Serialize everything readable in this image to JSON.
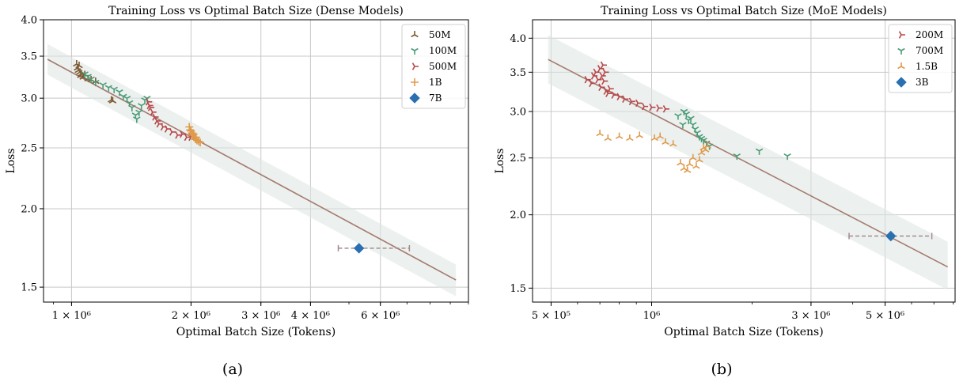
{
  "panels": [
    {
      "caption": "(a)",
      "chart_data": {
        "type": "scatter",
        "title": "Training Loss vs Optimal Batch Size (Dense Models)",
        "xlabel": "Optimal Batch Size (Tokens)",
        "ylabel": "Loss",
        "xscale": "log",
        "yscale": "log",
        "xlim": [
          850000,
          10000000
        ],
        "ylim": [
          1.42,
          4.0
        ],
        "xticks": [
          {
            "v": 1000000,
            "label": "1 × 10⁶"
          },
          {
            "v": 2000000,
            "label": "2 × 10⁶"
          },
          {
            "v": 3000000,
            "label": "3 × 10⁶"
          },
          {
            "v": 4000000,
            "label": "4 × 10⁶"
          },
          {
            "v": 6000000,
            "label": "6 × 10⁶"
          }
        ],
        "yticks": [
          {
            "v": 1.5,
            "label": "1.5"
          },
          {
            "v": 2.0,
            "label": "2.0"
          },
          {
            "v": 2.5,
            "label": "2.5"
          },
          {
            "v": 3.0,
            "label": "3.0"
          },
          {
            "v": 3.5,
            "label": "3.5"
          },
          {
            "v": 4.0,
            "label": "4.0"
          }
        ],
        "grid": true,
        "legend_position": "top-right",
        "fit_line": {
          "x": [
            870000,
            9300000
          ],
          "y": [
            3.46,
            1.54
          ],
          "color": "#a57a6e"
        },
        "fit_band": {
          "upper": [
            [
              870000,
              3.66
            ],
            [
              9300000,
              1.63
            ]
          ],
          "lower": [
            [
              870000,
              3.27
            ],
            [
              9300000,
              1.45
            ]
          ],
          "color": "#dde6e1"
        },
        "series": [
          {
            "name": "50M",
            "color": "#7d5a32",
            "marker": "tri_down",
            "points": [
              [
                1030000,
                3.4
              ],
              [
                1035000,
                3.35
              ],
              [
                1040000,
                3.32
              ],
              [
                1045000,
                3.38
              ],
              [
                1050000,
                3.3
              ],
              [
                1055000,
                3.26
              ],
              [
                1060000,
                3.28
              ],
              [
                1070000,
                3.24
              ],
              [
                1080000,
                3.27
              ],
              [
                1100000,
                3.22
              ],
              [
                1120000,
                3.21
              ],
              [
                1150000,
                3.19
              ],
              [
                1260000,
                2.98
              ],
              [
                1270000,
                2.97
              ]
            ]
          },
          {
            "name": "100M",
            "color": "#4a9c78",
            "marker": "tri_up",
            "points": [
              [
                1080000,
                3.28
              ],
              [
                1100000,
                3.25
              ],
              [
                1120000,
                3.22
              ],
              [
                1150000,
                3.18
              ],
              [
                1200000,
                3.15
              ],
              [
                1240000,
                3.12
              ],
              [
                1280000,
                3.1
              ],
              [
                1320000,
                3.07
              ],
              [
                1350000,
                3.02
              ],
              [
                1380000,
                3.0
              ],
              [
                1400000,
                2.95
              ],
              [
                1420000,
                2.9
              ],
              [
                1450000,
                2.82
              ],
              [
                1460000,
                2.78
              ],
              [
                1480000,
                2.85
              ],
              [
                1500000,
                2.92
              ],
              [
                1530000,
                2.98
              ],
              [
                1550000,
                3.0
              ]
            ]
          },
          {
            "name": "500M",
            "color": "#b8474a",
            "marker": "tri_left",
            "points": [
              [
                1560000,
                2.96
              ],
              [
                1570000,
                2.92
              ],
              [
                1580000,
                2.9
              ],
              [
                1600000,
                2.85
              ],
              [
                1620000,
                2.8
              ],
              [
                1640000,
                2.76
              ],
              [
                1660000,
                2.73
              ],
              [
                1700000,
                2.7
              ],
              [
                1740000,
                2.68
              ],
              [
                1790000,
                2.65
              ],
              [
                1850000,
                2.62
              ],
              [
                1900000,
                2.63
              ],
              [
                1950000,
                2.6
              ],
              [
                2000000,
                2.6
              ]
            ]
          },
          {
            "name": "1B",
            "color": "#e09a4c",
            "marker": "plus",
            "points": [
              [
                1980000,
                2.7
              ],
              [
                1990000,
                2.67
              ],
              [
                2000000,
                2.66
              ],
              [
                2010000,
                2.64
              ],
              [
                2020000,
                2.62
              ],
              [
                2030000,
                2.63
              ],
              [
                2040000,
                2.6
              ],
              [
                2050000,
                2.58
              ],
              [
                2060000,
                2.6
              ],
              [
                2070000,
                2.57
              ],
              [
                2090000,
                2.56
              ],
              [
                2110000,
                2.55
              ]
            ]
          },
          {
            "name": "7B",
            "color": "#2a6fb0",
            "marker": "diamond",
            "points": [
              [
                5300000,
                1.73
              ]
            ],
            "xerr": [
              [
                4700000,
                7100000
              ]
            ]
          }
        ]
      }
    },
    {
      "caption": "(b)",
      "chart_data": {
        "type": "scatter",
        "title": "Training Loss vs Optimal Batch Size (MoE Models)",
        "xlabel": "Optimal Batch Size (Tokens)",
        "ylabel": "Loss",
        "xscale": "log",
        "yscale": "log",
        "xlim": [
          440000,
          8100000
        ],
        "ylim": [
          1.42,
          4.3
        ],
        "xticks": [
          {
            "v": 500000,
            "label": "5 × 10⁵"
          },
          {
            "v": 1000000,
            "label": "10⁶"
          },
          {
            "v": 3000000,
            "label": "3 × 10⁶"
          },
          {
            "v": 5000000,
            "label": "5 × 10⁶"
          }
        ],
        "yticks": [
          {
            "v": 1.5,
            "label": "1.5"
          },
          {
            "v": 2.0,
            "label": "2.0"
          },
          {
            "v": 2.5,
            "label": "2.5"
          },
          {
            "v": 3.0,
            "label": "3.0"
          },
          {
            "v": 3.5,
            "label": "3.5"
          },
          {
            "v": 4.0,
            "label": "4.0"
          }
        ],
        "grid": true,
        "legend_position": "top-right",
        "fit_line": {
          "x": [
            490000,
            7700000
          ],
          "y": [
            3.68,
            1.63
          ],
          "color": "#a57a6e"
        },
        "fit_band": {
          "upper": [
            [
              490000,
              4.05
            ],
            [
              7700000,
              1.8
            ]
          ],
          "lower": [
            [
              490000,
              3.35
            ],
            [
              7700000,
              1.49
            ]
          ],
          "color": "#dde6e1"
        },
        "series": [
          {
            "name": "200M",
            "color": "#b8474a",
            "marker": "tri_left",
            "points": [
              [
                640000,
                3.4
              ],
              [
                660000,
                3.35
              ],
              [
                670000,
                3.45
              ],
              [
                680000,
                3.5
              ],
              [
                690000,
                3.4
              ],
              [
                700000,
                3.55
              ],
              [
                705000,
                3.3
              ],
              [
                710000,
                3.45
              ],
              [
                715000,
                3.6
              ],
              [
                720000,
                3.38
              ],
              [
                725000,
                3.5
              ],
              [
                730000,
                3.25
              ],
              [
                740000,
                3.22
              ],
              [
                750000,
                3.28
              ],
              [
                770000,
                3.2
              ],
              [
                800000,
                3.18
              ],
              [
                830000,
                3.15
              ],
              [
                870000,
                3.12
              ],
              [
                910000,
                3.1
              ],
              [
                950000,
                3.06
              ],
              [
                1000000,
                3.05
              ],
              [
                1050000,
                3.04
              ],
              [
                1100000,
                3.03
              ]
            ]
          },
          {
            "name": "700M",
            "color": "#4a9c78",
            "marker": "tri_up",
            "points": [
              [
                1200000,
                2.95
              ],
              [
                1250000,
                3.0
              ],
              [
                1270000,
                2.97
              ],
              [
                1290000,
                2.9
              ],
              [
                1310000,
                2.92
              ],
              [
                1330000,
                2.85
              ],
              [
                1350000,
                2.8
              ],
              [
                1370000,
                2.76
              ],
              [
                1390000,
                2.72
              ],
              [
                1410000,
                2.7
              ],
              [
                1430000,
                2.68
              ],
              [
                1460000,
                2.65
              ],
              [
                1490000,
                2.62
              ],
              [
                1240000,
                2.85
              ],
              [
                1800000,
                2.52
              ],
              [
                2100000,
                2.57
              ],
              [
                2550000,
                2.52
              ]
            ]
          },
          {
            "name": "1.5B",
            "color": "#e09a4c",
            "marker": "tri_down",
            "points": [
              [
                700000,
                2.75
              ],
              [
                740000,
                2.7
              ],
              [
                800000,
                2.72
              ],
              [
                860000,
                2.7
              ],
              [
                920000,
                2.73
              ],
              [
                1020000,
                2.7
              ],
              [
                1060000,
                2.72
              ],
              [
                1100000,
                2.66
              ],
              [
                1160000,
                2.64
              ],
              [
                1220000,
                2.45
              ],
              [
                1250000,
                2.4
              ],
              [
                1280000,
                2.38
              ],
              [
                1300000,
                2.44
              ],
              [
                1330000,
                2.5
              ],
              [
                1360000,
                2.42
              ],
              [
                1390000,
                2.48
              ],
              [
                1410000,
                2.55
              ],
              [
                1430000,
                2.6
              ],
              [
                1450000,
                2.58
              ],
              [
                1470000,
                2.62
              ]
            ]
          },
          {
            "name": "3B",
            "color": "#2a6fb0",
            "marker": "diamond",
            "points": [
              [
                5200000,
                1.84
              ]
            ],
            "xerr": [
              [
                3900000,
                6900000
              ]
            ]
          }
        ]
      }
    }
  ]
}
